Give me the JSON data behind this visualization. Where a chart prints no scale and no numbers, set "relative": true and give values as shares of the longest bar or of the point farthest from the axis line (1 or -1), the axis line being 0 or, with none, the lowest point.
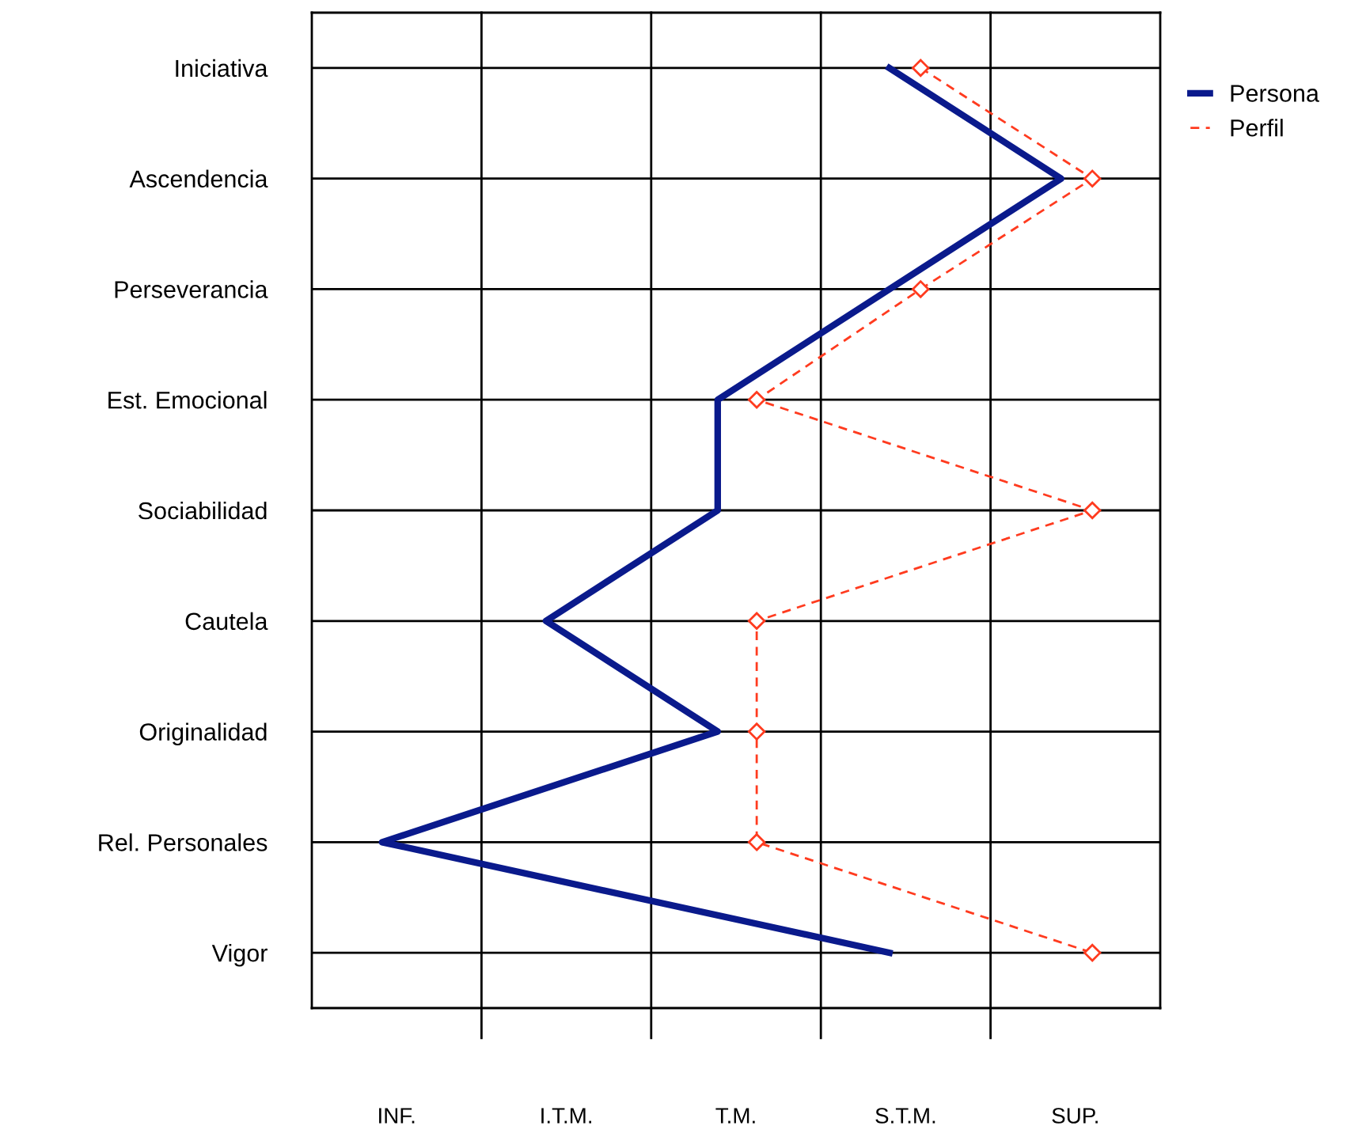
{
  "chart_data": {
    "type": "line",
    "orientation": "horizontal",
    "relative": true,
    "categories": [
      "Iniciativa",
      "Ascendencia",
      "Perseverancia",
      "Est. Emocional",
      "Sociabilidad",
      "Cautela",
      "Originalidad",
      "Rel. Personales",
      "Vigor"
    ],
    "series": [
      {
        "name": "Persona",
        "color": "#0a1a8c",
        "values": [
          0.74,
          0.96,
          0.74,
          0.52,
          0.52,
          0.3,
          0.52,
          0.09,
          0.74
        ],
        "line_style": "solid",
        "marker": "none"
      },
      {
        "name": "Perfil",
        "color": "#ff3b1f",
        "values": [
          0.78,
          1,
          0.78,
          0.57,
          1,
          0.57,
          0.57,
          0.57,
          1
        ],
        "line_style": "dashed",
        "marker": "diamond"
      }
    ],
    "annotations": [
      "INF.",
      "I.T.M.",
      "T.M.",
      "S.T.M.",
      "SUP."
    ],
    "grid": true,
    "legend": "top right"
  }
}
